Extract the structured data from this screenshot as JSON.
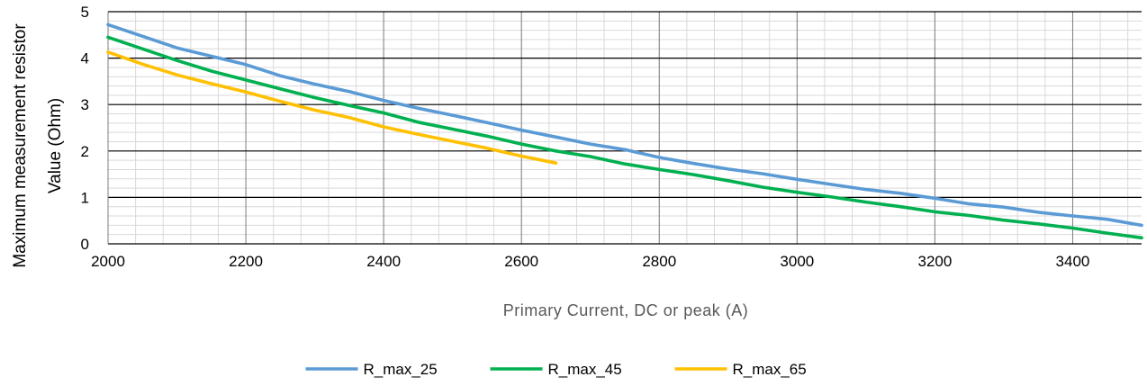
{
  "chart_data": {
    "type": "line",
    "xlabel": "Primary Current, DC or peak (A)",
    "ylabel_lines": [
      "Maximum measurement  resistor",
      "Value (Ohm)"
    ],
    "xlim": [
      2000,
      3500
    ],
    "ylim": [
      0,
      5
    ],
    "xticks": [
      2000,
      2200,
      2400,
      2600,
      2800,
      3000,
      3200,
      3400
    ],
    "yticks": [
      0,
      1,
      2,
      3,
      4,
      5
    ],
    "minor_grid": true,
    "legend_position": "bottom-center",
    "series": [
      {
        "name": "R_max_25",
        "color": "#5B9BD5",
        "x": [
          2000,
          2050,
          2100,
          2150,
          2200,
          2250,
          2300,
          2350,
          2400,
          2450,
          2500,
          2550,
          2600,
          2650,
          2700,
          2750,
          2800,
          2850,
          2900,
          2950,
          3000,
          3050,
          3100,
          3150,
          3200,
          3250,
          3300,
          3350,
          3400,
          3450,
          3500
        ],
        "y": [
          4.72,
          4.47,
          4.22,
          4.04,
          3.86,
          3.62,
          3.44,
          3.28,
          3.09,
          2.92,
          2.77,
          2.61,
          2.45,
          2.3,
          2.15,
          2.03,
          1.86,
          1.73,
          1.61,
          1.51,
          1.39,
          1.28,
          1.17,
          1.09,
          0.98,
          0.86,
          0.79,
          0.68,
          0.6,
          0.53,
          0.4
        ]
      },
      {
        "name": "R_max_45",
        "color": "#00B050",
        "x": [
          2000,
          2050,
          2100,
          2150,
          2200,
          2250,
          2300,
          2350,
          2400,
          2450,
          2500,
          2550,
          2600,
          2650,
          2700,
          2750,
          2800,
          2850,
          2900,
          2950,
          3000,
          3050,
          3100,
          3150,
          3200,
          3250,
          3300,
          3350,
          3400,
          3450,
          3500
        ],
        "y": [
          4.45,
          4.2,
          3.95,
          3.72,
          3.53,
          3.34,
          3.15,
          2.98,
          2.82,
          2.62,
          2.47,
          2.32,
          2.15,
          2.0,
          1.88,
          1.72,
          1.6,
          1.49,
          1.36,
          1.22,
          1.11,
          1.01,
          0.9,
          0.8,
          0.69,
          0.61,
          0.51,
          0.43,
          0.34,
          0.23,
          0.13
        ]
      },
      {
        "name": "R_max_65",
        "color": "#FFC000",
        "x": [
          2000,
          2050,
          2100,
          2150,
          2200,
          2250,
          2300,
          2350,
          2400,
          2450,
          2500,
          2550,
          2600,
          2650
        ],
        "y": [
          4.13,
          3.87,
          3.64,
          3.45,
          3.27,
          3.07,
          2.88,
          2.72,
          2.52,
          2.36,
          2.21,
          2.06,
          1.89,
          1.74
        ]
      }
    ]
  }
}
